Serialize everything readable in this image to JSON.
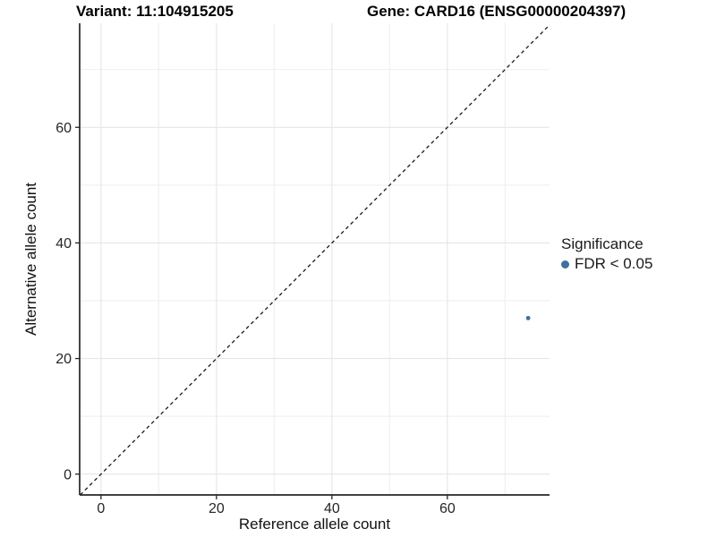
{
  "chart_data": {
    "type": "scatter",
    "title_left": "Variant: 11:104915205",
    "title_right": "Gene: CARD16 (ENSG00000204397)",
    "xlabel": "Reference allele count",
    "ylabel": "Alternative allele count",
    "xlim": [
      -3.7,
      77.7
    ],
    "ylim": [
      -3.6,
      78.0
    ],
    "x_ticks": [
      0,
      20,
      40,
      60
    ],
    "y_ticks": [
      0,
      20,
      40,
      60
    ],
    "x_minor_ticks": [
      10,
      30,
      50,
      70
    ],
    "y_minor_ticks": [
      10,
      30,
      50,
      70
    ],
    "grid": true,
    "identity_line": {
      "style": "dashed",
      "equation": "y = x"
    },
    "series": [
      {
        "name": "FDR < 0.05",
        "points": [
          {
            "x": 74,
            "y": 27
          }
        ]
      }
    ],
    "legend": {
      "title": "Significance",
      "position": "right",
      "items": [
        {
          "label": "FDR < 0.05",
          "color": "#3d6fa6"
        }
      ]
    },
    "colors": {
      "point": "#3d6fa6",
      "axis": "#262626",
      "tick_label": "#262626",
      "axis_title": "#111111",
      "grid_major": "#e3e3e3",
      "grid_minor": "#eeeeee",
      "identity_line": "#1a1a1a",
      "background": "#ffffff"
    }
  }
}
